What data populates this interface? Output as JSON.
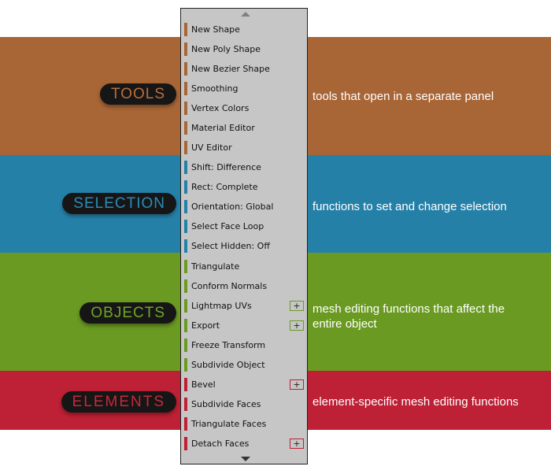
{
  "colors": {
    "tools": "#A86535",
    "selection": "#2580A8",
    "objects": "#6A9A22",
    "elements": "#BE2035",
    "tools_text": "#B8703A",
    "selection_text": "#2A8CB8",
    "objects_text": "#72A428",
    "elements_text": "#C8283C"
  },
  "sections": [
    {
      "key": "tools",
      "label": "TOOLS",
      "description": "tools that open in a separate panel"
    },
    {
      "key": "selection",
      "label": "SELECTION",
      "description": "functions to set and change selection"
    },
    {
      "key": "objects",
      "label": "OBJECTS",
      "description": "mesh editing functions that affect the entire object"
    },
    {
      "key": "elements",
      "label": "ELEMENTS",
      "description": "element-specific mesh editing functions"
    }
  ],
  "menu": {
    "scroll_up_icon": "triangle-up",
    "scroll_down_icon": "triangle-down",
    "items": [
      {
        "label": "New Shape",
        "group": "tools",
        "plus": false
      },
      {
        "label": "New Poly Shape",
        "group": "tools",
        "plus": false
      },
      {
        "label": "New Bezier Shape",
        "group": "tools",
        "plus": false
      },
      {
        "label": "Smoothing",
        "group": "tools",
        "plus": false
      },
      {
        "label": "Vertex Colors",
        "group": "tools",
        "plus": false
      },
      {
        "label": "Material Editor",
        "group": "tools",
        "plus": false
      },
      {
        "label": "UV Editor",
        "group": "tools",
        "plus": false
      },
      {
        "label": "Shift: Difference",
        "group": "selection",
        "plus": false
      },
      {
        "label": "Rect: Complete",
        "group": "selection",
        "plus": false
      },
      {
        "label": "Orientation: Global",
        "group": "selection",
        "plus": false
      },
      {
        "label": "Select Face Loop",
        "group": "selection",
        "plus": false
      },
      {
        "label": "Select Hidden: Off",
        "group": "selection",
        "plus": false
      },
      {
        "label": "Triangulate",
        "group": "objects",
        "plus": false
      },
      {
        "label": "Conform Normals",
        "group": "objects",
        "plus": false
      },
      {
        "label": "Lightmap UVs",
        "group": "objects",
        "plus": true
      },
      {
        "label": "Export",
        "group": "objects",
        "plus": true
      },
      {
        "label": "Freeze Transform",
        "group": "objects",
        "plus": false
      },
      {
        "label": "Subdivide Object",
        "group": "objects",
        "plus": false
      },
      {
        "label": "Bevel",
        "group": "elements",
        "plus": true
      },
      {
        "label": "Subdivide Faces",
        "group": "elements",
        "plus": false
      },
      {
        "label": "Triangulate Faces",
        "group": "elements",
        "plus": false
      },
      {
        "label": "Detach Faces",
        "group": "elements",
        "plus": true
      }
    ],
    "plus_label": "+"
  }
}
